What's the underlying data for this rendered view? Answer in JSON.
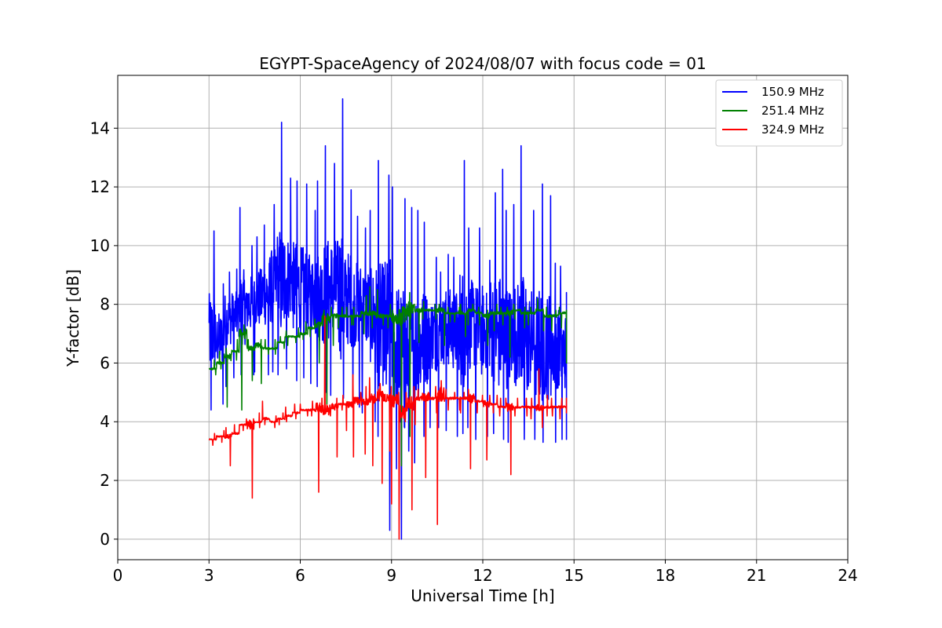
{
  "chart_data": {
    "type": "line",
    "title": "EGYPT-SpaceAgency of 2024/08/07 with focus code = 01",
    "xlabel": "Universal Time [h]",
    "ylabel": "Y-factor [dB]",
    "xlim": [
      0,
      24
    ],
    "ylim": [
      -0.7,
      15.8
    ],
    "xticks": [
      0,
      3,
      6,
      9,
      12,
      15,
      18,
      21,
      24
    ],
    "yticks": [
      0,
      2,
      4,
      6,
      8,
      10,
      12,
      14
    ],
    "grid": true,
    "legend_position": "top-right",
    "series": [
      {
        "name": "150.9 MHz",
        "color": "#0000ff",
        "x": [
          3.0,
          3.25,
          3.5,
          3.75,
          4.0,
          4.25,
          4.5,
          4.75,
          5.0,
          5.25,
          5.5,
          5.75,
          6.0,
          6.25,
          6.5,
          6.75,
          7.0,
          7.25,
          7.5,
          7.75,
          8.0,
          8.25,
          8.5,
          8.75,
          9.0,
          9.25,
          9.5,
          9.75,
          10.0,
          10.25,
          10.5,
          10.75,
          11.0,
          11.25,
          11.5,
          11.75,
          12.0,
          12.25,
          12.5,
          12.75,
          13.0,
          13.25,
          13.5,
          13.75,
          14.0,
          14.25,
          14.5,
          14.75
        ],
        "y": [
          7.0,
          6.8,
          7.5,
          7.6,
          7.9,
          8.0,
          8.2,
          8.4,
          8.6,
          8.7,
          8.9,
          8.6,
          8.5,
          8.4,
          8.3,
          8.4,
          8.5,
          8.4,
          8.2,
          8.0,
          7.9,
          7.6,
          7.3,
          6.9,
          6.6,
          6.0,
          6.3,
          6.6,
          6.9,
          7.0,
          7.1,
          7.2,
          7.1,
          7.2,
          7.3,
          7.1,
          7.1,
          7.2,
          7.0,
          6.9,
          7.0,
          6.8,
          6.8,
          6.6,
          6.6,
          6.5,
          6.4,
          6.2
        ],
        "y_min": [
          4.4,
          4.6,
          5.2,
          5.5,
          5.6,
          5.6,
          5.7,
          5.6,
          5.7,
          5.6,
          5.8,
          5.4,
          5.5,
          5.3,
          5.2,
          5.0,
          4.9,
          4.8,
          4.6,
          4.5,
          4.3,
          4.0,
          3.5,
          0.3,
          2.4,
          0.0,
          3.0,
          2.6,
          3.5,
          3.8,
          3.8,
          3.7,
          3.5,
          3.6,
          3.8,
          3.4,
          3.5,
          3.6,
          3.4,
          3.3,
          3.5,
          3.4,
          3.4,
          3.3,
          3.4,
          3.3,
          3.4,
          3.4
        ],
        "y_max": [
          10.5,
          8.7,
          9.1,
          9.2,
          11.3,
          10.0,
          10.3,
          10.7,
          11.4,
          14.2,
          12.3,
          12.2,
          12.1,
          11.2,
          12.2,
          13.4,
          12.8,
          15.0,
          11.9,
          11.0,
          10.6,
          11.2,
          12.9,
          12.4,
          12.0,
          11.6,
          11.3,
          11.2,
          10.8,
          9.6,
          9.1,
          9.7,
          9.6,
          12.9,
          10.6,
          10.6,
          9.5,
          11.8,
          12.6,
          11.2,
          11.4,
          13.4,
          11.2,
          12.1,
          11.7,
          9.4,
          9.3,
          8.4
        ]
      },
      {
        "name": "251.4 MHz",
        "color": "#008000",
        "x": [
          3.0,
          3.25,
          3.5,
          3.75,
          4.0,
          4.25,
          4.5,
          4.75,
          5.0,
          5.25,
          5.5,
          5.75,
          6.0,
          6.25,
          6.5,
          6.75,
          7.0,
          7.25,
          7.5,
          7.75,
          8.0,
          8.25,
          8.5,
          8.75,
          9.0,
          9.25,
          9.5,
          9.75,
          10.0,
          10.25,
          10.5,
          10.75,
          11.0,
          11.25,
          11.5,
          11.75,
          12.0,
          12.25,
          12.5,
          12.75,
          13.0,
          13.25,
          13.5,
          13.75,
          14.0,
          14.25,
          14.5,
          14.75
        ],
        "y": [
          5.8,
          6.0,
          6.2,
          6.4,
          7.0,
          6.5,
          6.6,
          6.5,
          6.5,
          6.7,
          6.9,
          6.9,
          7.0,
          7.2,
          7.3,
          7.5,
          7.6,
          7.6,
          7.6,
          7.6,
          7.7,
          7.7,
          7.6,
          7.6,
          7.5,
          7.6,
          7.8,
          7.8,
          7.8,
          7.8,
          7.8,
          7.7,
          7.7,
          7.7,
          7.8,
          7.7,
          7.6,
          7.7,
          7.7,
          7.7,
          7.8,
          7.7,
          7.7,
          7.8,
          7.6,
          7.6,
          7.7,
          7.4
        ],
        "y_min": [
          5.6,
          5.8,
          4.5,
          6.1,
          4.4,
          5.4,
          5.3,
          6.3,
          6.3,
          6.5,
          6.6,
          6.7,
          6.8,
          6.9,
          6.0,
          4.6,
          6.6,
          7.2,
          7.3,
          7.3,
          7.0,
          7.2,
          7.3,
          7.2,
          4.8,
          2.5,
          3.5,
          6.7,
          7.5,
          7.5,
          6.6,
          7.4,
          7.4,
          6.9,
          7.3,
          7.3,
          6.6,
          7.1,
          7.3,
          6.2,
          7.5,
          7.2,
          7.3,
          7.4,
          7.1,
          7.1,
          7.2,
          6.0
        ],
        "y_max": [
          6.1,
          6.4,
          6.5,
          6.8,
          7.3,
          6.8,
          6.8,
          6.8,
          6.8,
          6.9,
          7.1,
          7.2,
          7.4,
          7.5,
          7.6,
          7.8,
          7.9,
          7.9,
          7.9,
          7.9,
          8.3,
          8.6,
          8.5,
          8.0,
          7.8,
          7.9,
          8.4,
          8.0,
          8.1,
          8.0,
          8.0,
          7.9,
          7.9,
          8.0,
          8.0,
          7.9,
          7.8,
          8.0,
          7.9,
          7.9,
          8.0,
          7.9,
          7.9,
          8.2,
          7.9,
          7.8,
          7.9,
          7.8
        ]
      },
      {
        "name": "324.9 MHz",
        "color": "#ff0000",
        "x": [
          3.0,
          3.25,
          3.5,
          3.75,
          4.0,
          4.25,
          4.5,
          4.75,
          5.0,
          5.25,
          5.5,
          5.75,
          6.0,
          6.25,
          6.5,
          6.75,
          7.0,
          7.25,
          7.5,
          7.75,
          8.0,
          8.25,
          8.5,
          8.75,
          9.0,
          9.25,
          9.5,
          9.75,
          10.0,
          10.25,
          10.5,
          10.75,
          11.0,
          11.25,
          11.5,
          11.75,
          12.0,
          12.25,
          12.5,
          12.75,
          13.0,
          13.25,
          13.5,
          13.75,
          14.0,
          14.25,
          14.5,
          14.75
        ],
        "y": [
          3.4,
          3.5,
          3.5,
          3.6,
          3.9,
          3.9,
          4.0,
          4.1,
          4.0,
          4.1,
          4.2,
          4.3,
          4.4,
          4.4,
          4.5,
          4.4,
          4.5,
          4.6,
          4.6,
          4.7,
          4.7,
          4.8,
          4.9,
          4.8,
          4.7,
          4.3,
          4.6,
          4.8,
          4.8,
          4.8,
          4.9,
          4.8,
          4.8,
          4.8,
          4.8,
          4.7,
          4.6,
          4.6,
          4.5,
          4.5,
          4.5,
          4.5,
          4.5,
          4.5,
          4.5,
          4.5,
          4.5,
          4.6
        ],
        "y_min": [
          3.2,
          3.3,
          2.5,
          3.4,
          3.7,
          1.4,
          3.8,
          3.9,
          3.8,
          3.9,
          4.0,
          4.1,
          4.2,
          4.2,
          1.6,
          4.2,
          2.8,
          4.4,
          3.7,
          2.8,
          2.9,
          2.5,
          1.9,
          3.0,
          1.2,
          0.0,
          1.0,
          3.9,
          2.1,
          4.3,
          0.5,
          4.4,
          4.4,
          4.3,
          2.4,
          4.3,
          2.7,
          4.3,
          4.2,
          2.2,
          4.2,
          4.2,
          4.1,
          3.8,
          4.2,
          4.2,
          4.1,
          4.3
        ],
        "y_max": [
          3.6,
          3.7,
          3.8,
          3.9,
          4.1,
          4.1,
          4.3,
          4.7,
          4.2,
          4.3,
          4.5,
          4.6,
          4.6,
          4.7,
          4.8,
          7.6,
          4.8,
          4.9,
          5.6,
          5.0,
          5.2,
          5.5,
          5.3,
          5.2,
          5.0,
          5.0,
          5.2,
          5.1,
          5.0,
          5.2,
          5.4,
          5.1,
          5.0,
          5.0,
          5.1,
          4.9,
          4.9,
          4.9,
          4.8,
          4.8,
          4.8,
          4.8,
          4.8,
          5.8,
          4.9,
          4.8,
          4.8,
          4.8
        ]
      }
    ]
  }
}
